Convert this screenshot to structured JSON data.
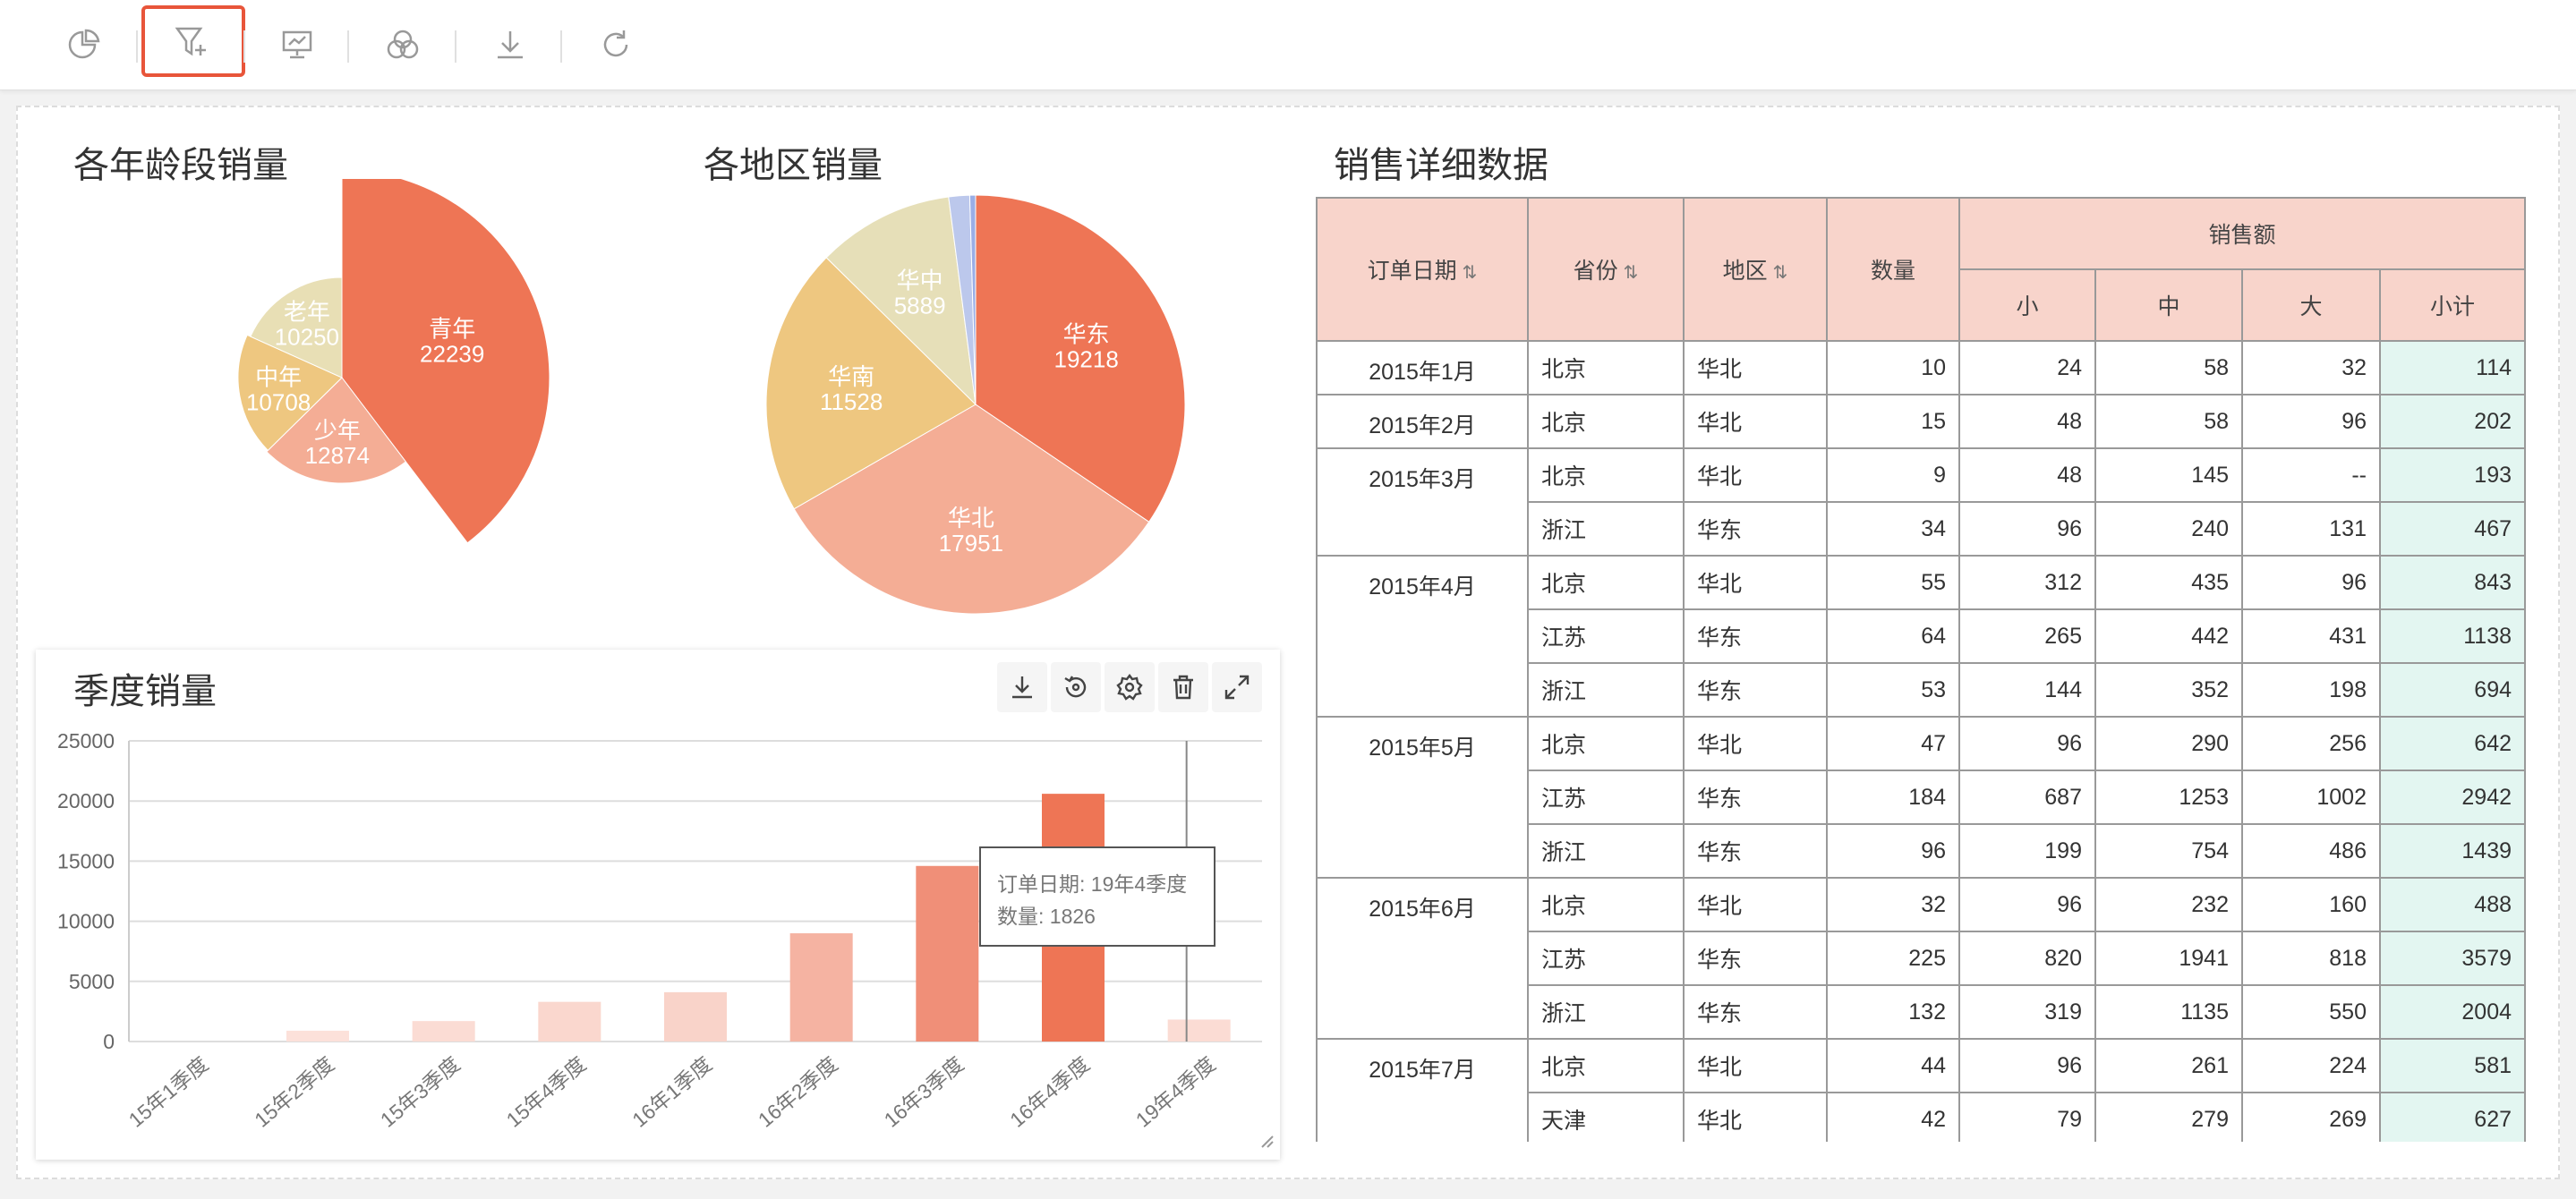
{
  "toolbar": {
    "icons": [
      "pie-chart-add-icon",
      "filter-add-icon",
      "presentation-icon",
      "venn-icon",
      "download-icon",
      "refresh-icon"
    ]
  },
  "age_chart": {
    "title": "各年龄段销量",
    "chart_data": {
      "type": "pie",
      "rose": true,
      "slices": [
        {
          "label": "青年",
          "value": 22239,
          "color": "#ee7555"
        },
        {
          "label": "少年",
          "value": 12874,
          "color": "#f4ad95"
        },
        {
          "label": "中年",
          "value": 10708,
          "color": "#eec780"
        },
        {
          "label": "老年",
          "value": 10250,
          "color": "#e8dfb5"
        }
      ]
    }
  },
  "region_chart": {
    "title": "各地区销量",
    "chart_data": {
      "type": "pie",
      "slices": [
        {
          "label": "华东",
          "value": 19218,
          "color": "#ee7555"
        },
        {
          "label": "华北",
          "value": 17951,
          "color": "#f4ad95"
        },
        {
          "label": "华南",
          "value": 11528,
          "color": "#eec780"
        },
        {
          "label": "华中",
          "value": 5889,
          "color": "#e6dfb8"
        },
        {
          "label": "",
          "value": 900,
          "color": "#bcc8ec"
        },
        {
          "label": "",
          "value": 250,
          "color": "#9aaee6"
        }
      ]
    }
  },
  "quarter_chart": {
    "title": "季度销量",
    "tools": [
      "download-icon",
      "history-icon",
      "settings-icon",
      "trash-icon",
      "expand-icon"
    ],
    "chart_data": {
      "type": "bar",
      "categories": [
        "15年1季度",
        "15年2季度",
        "15年3季度",
        "15年4季度",
        "16年1季度",
        "16年2季度",
        "16年3季度",
        "16年4季度",
        "19年4季度"
      ],
      "values": [
        0,
        900,
        1700,
        3300,
        4100,
        9000,
        14600,
        20600,
        1826
      ],
      "colors": [
        "#fce6e0",
        "#fce1da",
        "#fbdcd4",
        "#fad7ce",
        "#f9d3c9",
        "#f5b3a2",
        "#f08f78",
        "#ee7555",
        "#fbdcd4"
      ],
      "yticks": [
        0,
        5000,
        10000,
        15000,
        20000,
        25000
      ],
      "ylim": [
        0,
        25000
      ]
    },
    "tooltip": {
      "line1": "订单日期: 19年4季度",
      "line2": "数量: 1826"
    }
  },
  "table": {
    "title": "销售详细数据",
    "headers": {
      "date": "订单日期",
      "province": "省份",
      "region": "地区",
      "qty": "数量",
      "sales": "销售额",
      "small": "小",
      "mid": "中",
      "large": "大",
      "subtotal": "小计"
    },
    "groups": [
      {
        "date": "2015年1月",
        "rows": [
          [
            "北京",
            "华北",
            "10",
            "24",
            "58",
            "32",
            "114"
          ]
        ]
      },
      {
        "date": "2015年2月",
        "rows": [
          [
            "北京",
            "华北",
            "15",
            "48",
            "58",
            "96",
            "202"
          ]
        ]
      },
      {
        "date": "2015年3月",
        "rows": [
          [
            "北京",
            "华北",
            "9",
            "48",
            "145",
            "--",
            "193"
          ],
          [
            "浙江",
            "华东",
            "34",
            "96",
            "240",
            "131",
            "467"
          ]
        ]
      },
      {
        "date": "2015年4月",
        "rows": [
          [
            "北京",
            "华北",
            "55",
            "312",
            "435",
            "96",
            "843"
          ],
          [
            "江苏",
            "华东",
            "64",
            "265",
            "442",
            "431",
            "1138"
          ],
          [
            "浙江",
            "华东",
            "53",
            "144",
            "352",
            "198",
            "694"
          ]
        ]
      },
      {
        "date": "2015年5月",
        "rows": [
          [
            "北京",
            "华北",
            "47",
            "96",
            "290",
            "256",
            "642"
          ],
          [
            "江苏",
            "华东",
            "184",
            "687",
            "1253",
            "1002",
            "2942"
          ],
          [
            "浙江",
            "华东",
            "96",
            "199",
            "754",
            "486",
            "1439"
          ]
        ]
      },
      {
        "date": "2015年6月",
        "rows": [
          [
            "北京",
            "华北",
            "32",
            "96",
            "232",
            "160",
            "488"
          ],
          [
            "江苏",
            "华东",
            "225",
            "820",
            "1941",
            "818",
            "3579"
          ],
          [
            "浙江",
            "华东",
            "132",
            "319",
            "1135",
            "550",
            "2004"
          ]
        ]
      },
      {
        "date": "2015年7月",
        "rows": [
          [
            "北京",
            "华北",
            "44",
            "96",
            "261",
            "224",
            "581"
          ],
          [
            "天津",
            "华北",
            "42",
            "79",
            "279",
            "269",
            "627"
          ]
        ]
      }
    ]
  }
}
